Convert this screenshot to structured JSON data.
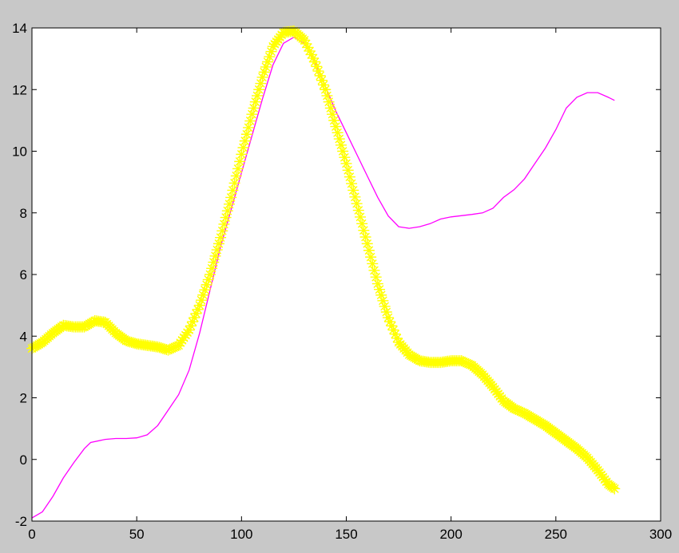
{
  "chart_data": {
    "type": "line",
    "title": "",
    "xlabel": "",
    "ylabel": "",
    "xlim": [
      0,
      300
    ],
    "ylim": [
      -2,
      14
    ],
    "grid": false,
    "legend": "none",
    "x_ticks": [
      "0",
      "50",
      "100",
      "150",
      "200",
      "250",
      "300"
    ],
    "y_ticks": [
      "-2",
      "0",
      "2",
      "4",
      "6",
      "8",
      "10",
      "12",
      "14"
    ],
    "background_color": "#c8c8c8",
    "plot_color": "#ffffff",
    "series": [
      {
        "color": "#ff00ff",
        "marker": "none",
        "points": [
          [
            0,
            -1.9
          ],
          [
            5,
            -1.7
          ],
          [
            10,
            -1.2
          ],
          [
            15,
            -0.6
          ],
          [
            20,
            -0.1
          ],
          [
            25,
            0.35
          ],
          [
            28,
            0.55
          ],
          [
            35,
            0.65
          ],
          [
            40,
            0.68
          ],
          [
            45,
            0.68
          ],
          [
            50,
            0.7
          ],
          [
            55,
            0.8
          ],
          [
            60,
            1.1
          ],
          [
            65,
            1.6
          ],
          [
            70,
            2.1
          ],
          [
            75,
            2.9
          ],
          [
            80,
            4.1
          ],
          [
            85,
            5.5
          ],
          [
            90,
            6.9
          ],
          [
            95,
            8.1
          ],
          [
            100,
            9.3
          ],
          [
            105,
            10.5
          ],
          [
            110,
            11.7
          ],
          [
            115,
            12.8
          ],
          [
            120,
            13.5
          ],
          [
            125,
            13.7
          ],
          [
            130,
            13.5
          ],
          [
            135,
            12.9
          ],
          [
            140,
            12.1
          ],
          [
            145,
            11.3
          ],
          [
            150,
            10.6
          ],
          [
            155,
            9.9
          ],
          [
            160,
            9.2
          ],
          [
            165,
            8.5
          ],
          [
            170,
            7.9
          ],
          [
            175,
            7.55
          ],
          [
            180,
            7.5
          ],
          [
            185,
            7.55
          ],
          [
            190,
            7.65
          ],
          [
            195,
            7.8
          ],
          [
            200,
            7.87
          ],
          [
            210,
            7.95
          ],
          [
            215,
            8.0
          ],
          [
            220,
            8.15
          ],
          [
            225,
            8.5
          ],
          [
            230,
            8.75
          ],
          [
            235,
            9.1
          ],
          [
            240,
            9.6
          ],
          [
            245,
            10.1
          ],
          [
            250,
            10.7
          ],
          [
            255,
            11.4
          ],
          [
            260,
            11.75
          ],
          [
            265,
            11.9
          ],
          [
            270,
            11.9
          ],
          [
            275,
            11.75
          ],
          [
            278,
            11.65
          ]
        ]
      },
      {
        "color": "#ffff00",
        "marker": "*",
        "points": [
          [
            0,
            3.6
          ],
          [
            5,
            3.8
          ],
          [
            10,
            4.1
          ],
          [
            15,
            4.35
          ],
          [
            20,
            4.3
          ],
          [
            25,
            4.3
          ],
          [
            30,
            4.5
          ],
          [
            35,
            4.45
          ],
          [
            40,
            4.1
          ],
          [
            45,
            3.85
          ],
          [
            50,
            3.75
          ],
          [
            55,
            3.7
          ],
          [
            60,
            3.65
          ],
          [
            65,
            3.55
          ],
          [
            70,
            3.7
          ],
          [
            75,
            4.2
          ],
          [
            80,
            5.0
          ],
          [
            85,
            6.0
          ],
          [
            90,
            7.2
          ],
          [
            95,
            8.5
          ],
          [
            100,
            9.9
          ],
          [
            105,
            11.2
          ],
          [
            110,
            12.4
          ],
          [
            115,
            13.4
          ],
          [
            120,
            13.85
          ],
          [
            125,
            13.9
          ],
          [
            130,
            13.6
          ],
          [
            135,
            12.9
          ],
          [
            140,
            12.0
          ],
          [
            145,
            10.8
          ],
          [
            150,
            9.6
          ],
          [
            155,
            8.3
          ],
          [
            160,
            7.0
          ],
          [
            165,
            5.7
          ],
          [
            170,
            4.6
          ],
          [
            175,
            3.8
          ],
          [
            180,
            3.4
          ],
          [
            185,
            3.2
          ],
          [
            190,
            3.15
          ],
          [
            195,
            3.15
          ],
          [
            200,
            3.2
          ],
          [
            205,
            3.2
          ],
          [
            210,
            3.05
          ],
          [
            215,
            2.75
          ],
          [
            220,
            2.35
          ],
          [
            225,
            1.9
          ],
          [
            230,
            1.65
          ],
          [
            235,
            1.5
          ],
          [
            240,
            1.3
          ],
          [
            245,
            1.1
          ],
          [
            250,
            0.85
          ],
          [
            255,
            0.6
          ],
          [
            260,
            0.35
          ],
          [
            265,
            0.05
          ],
          [
            270,
            -0.35
          ],
          [
            275,
            -0.8
          ],
          [
            278,
            -0.95
          ]
        ]
      }
    ]
  }
}
